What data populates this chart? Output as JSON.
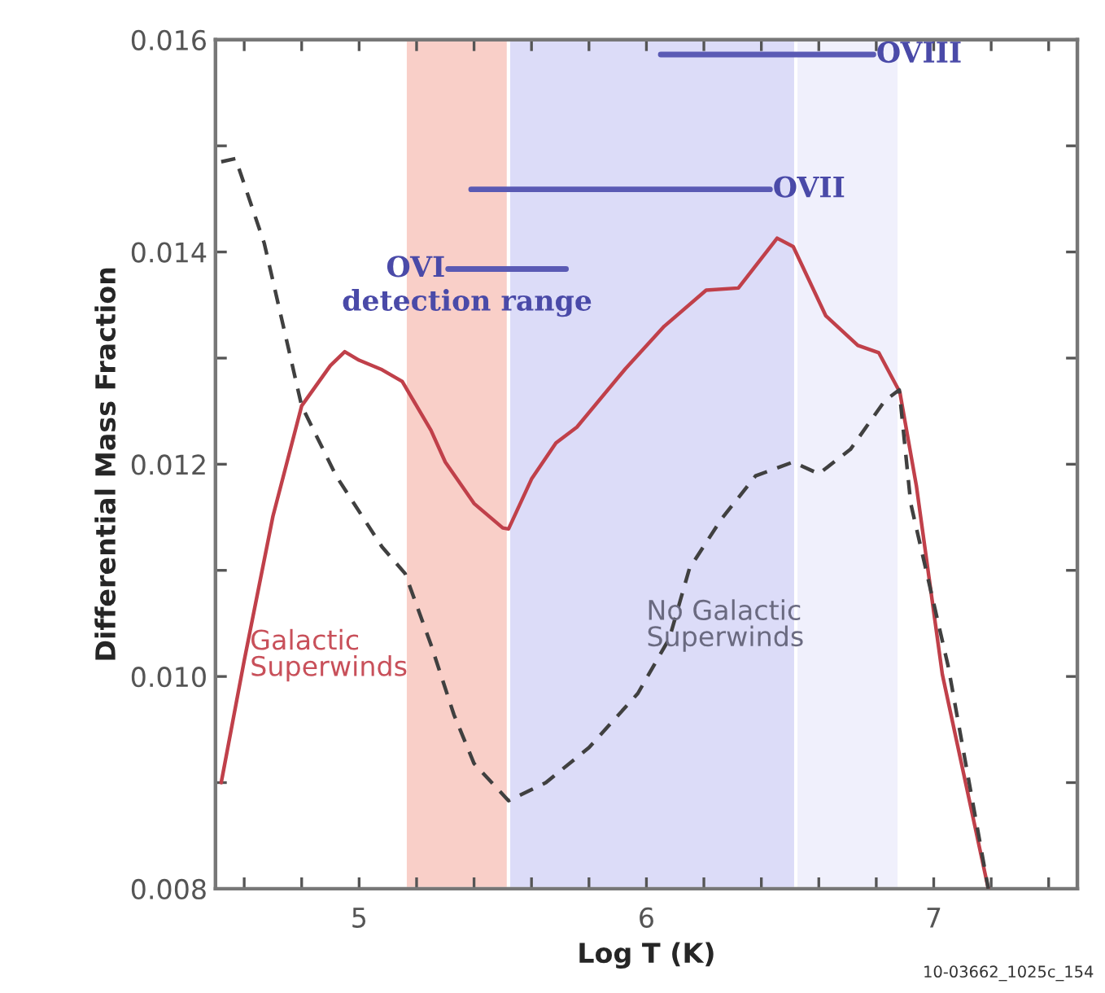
{
  "chart_data": {
    "type": "line",
    "xlabel": "Log T (K)",
    "ylabel": "Differential Mass Fraction",
    "xlim": [
      4.5,
      7.5
    ],
    "ylim": [
      0.008,
      0.016
    ],
    "xticks": [
      {
        "value": 4.6,
        "label": null
      },
      {
        "value": 4.8,
        "label": null
      },
      5,
      {
        "value": 5.2,
        "label": null
      },
      {
        "value": 5.4,
        "label": null
      },
      {
        "value": 5.6,
        "label": null
      },
      {
        "value": 5.8,
        "label": null
      },
      6,
      {
        "value": 6.2,
        "label": null
      },
      {
        "value": 6.4,
        "label": null
      },
      {
        "value": 6.6,
        "label": null
      },
      {
        "value": 6.8,
        "label": null
      },
      7,
      {
        "value": 7.2,
        "label": null
      },
      {
        "value": 7.4,
        "label": null
      }
    ],
    "yticks": [
      {
        "value": 0.008,
        "label": "0.008"
      },
      {
        "value": 0.009,
        "label": null
      },
      {
        "value": 0.01,
        "label": "0.010"
      },
      {
        "value": 0.011,
        "label": null
      },
      {
        "value": 0.012,
        "label": "0.012"
      },
      {
        "value": 0.013,
        "label": null
      },
      {
        "value": 0.014,
        "label": "0.014"
      },
      {
        "value": 0.015,
        "label": null
      },
      {
        "value": 0.016,
        "label": "0.016"
      }
    ],
    "grid": false,
    "legend": false,
    "marker": "none",
    "bands": [
      {
        "axis": "x",
        "from": 5.16,
        "to": 5.52,
        "color": "#f9cfc8"
      },
      {
        "axis": "x",
        "from": 5.52,
        "to": 6.52,
        "color": "#dcdcf8"
      },
      {
        "axis": "x",
        "from": 6.52,
        "to": 6.88,
        "color": "#f0f0fc"
      }
    ],
    "series": [
      {
        "name": "Galactic\nSuperwinds",
        "color": "#c0404a",
        "line_style": "solid",
        "x": [
          4.52,
          4.6,
          4.7,
          4.8,
          4.9,
          4.95,
          5.0,
          5.08,
          5.15,
          5.25,
          5.3,
          5.4,
          5.5,
          5.52,
          5.6,
          5.685,
          5.758,
          5.927,
          6.062,
          6.208,
          6.32,
          6.455,
          6.511,
          6.624,
          6.736,
          6.809,
          6.882,
          6.94,
          7.03,
          7.19
        ],
        "values": [
          0.009,
          0.01015,
          0.01151,
          0.01255,
          0.01293,
          0.01306,
          0.01298,
          0.01289,
          0.01278,
          0.01232,
          0.01202,
          0.01163,
          0.0114,
          0.01139,
          0.01186,
          0.0122,
          0.01235,
          0.0129,
          0.0133,
          0.01364,
          0.01366,
          0.01413,
          0.01405,
          0.0134,
          0.01312,
          0.01305,
          0.01268,
          0.01179,
          0.01002,
          0.008
        ]
      },
      {
        "name": "No Galactic\nSuperwinds",
        "color": "#404040",
        "line_style": "dashed",
        "x": [
          4.52,
          4.57,
          4.67,
          4.8,
          4.92,
          5.08,
          5.16,
          5.25,
          5.33,
          5.4,
          5.52,
          5.65,
          5.8,
          5.97,
          6.08,
          6.15,
          6.26,
          6.38,
          6.51,
          6.6,
          6.71,
          6.83,
          6.88,
          6.92,
          7.05,
          7.19
        ],
        "values": [
          0.01485,
          0.01488,
          0.01408,
          0.01255,
          0.01189,
          0.01122,
          0.01097,
          0.0103,
          0.00964,
          0.00918,
          0.00883,
          0.009,
          0.00933,
          0.00984,
          0.01036,
          0.01102,
          0.01148,
          0.01189,
          0.01202,
          0.01191,
          0.01214,
          0.0126,
          0.0127,
          0.01163,
          0.0101,
          0.008
        ]
      },
      {
        "name": "OVIII",
        "color": "#5a5ab4",
        "line_style": "solid",
        "x": [
          6.05,
          6.79
        ],
        "values": [
          0.01586,
          0.01586
        ]
      },
      {
        "name": "OVII",
        "color": "#5a5ab4",
        "line_style": "solid",
        "x": [
          5.39,
          6.43
        ],
        "values": [
          0.01459,
          0.01459
        ]
      },
      {
        "name": "OVI",
        "color": "#5a5ab4",
        "line_style": "solid",
        "x": [
          5.31,
          5.72
        ],
        "values": [
          0.01384,
          0.01384
        ]
      }
    ],
    "annotations": [
      "detection range",
      "10-03662_1025c_154"
    ]
  }
}
